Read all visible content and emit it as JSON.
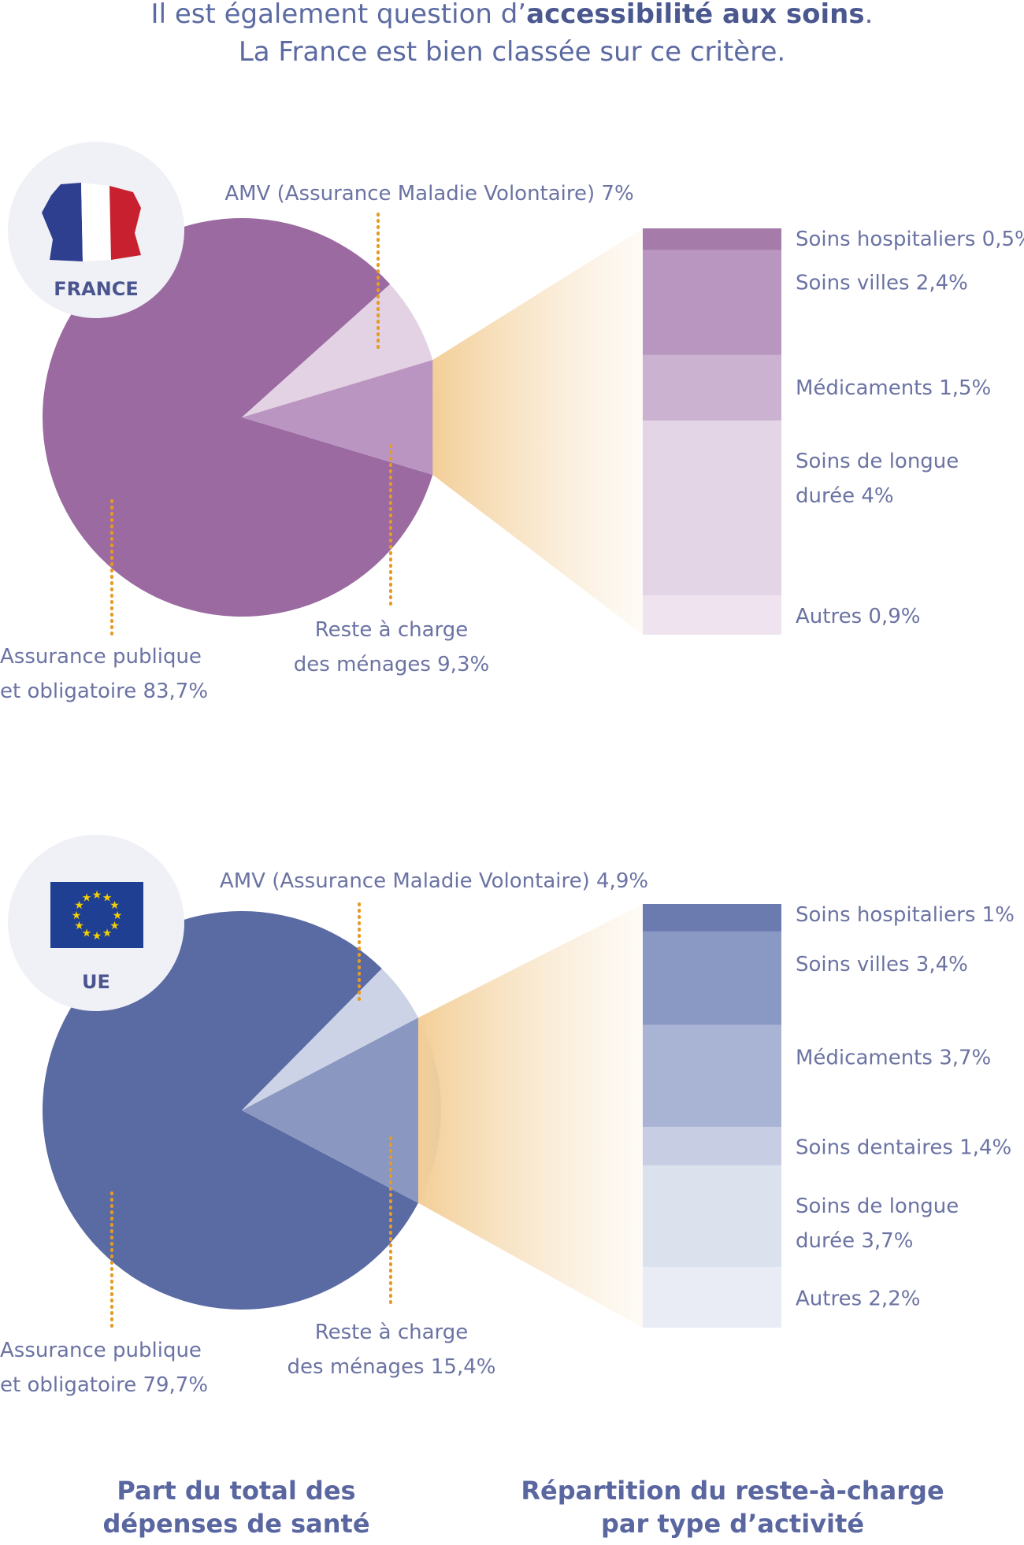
{
  "header": {
    "line1_prefix": "Il est également question d’",
    "line1_bold": "accessibilité aux soins",
    "line1_suffix": ".",
    "line2": "La France est bien classée sur ce critère."
  },
  "footer": {
    "left_title_line1": "Part du total des",
    "left_title_line2": "dépenses de santé",
    "right_title_line1": "Répartition du reste-à-charge",
    "right_title_line2": "par type d’activité"
  },
  "colors": {
    "france_main": "#9a6aa0",
    "france_amv": "#e2d2e4",
    "france_reste": "#bb95c1",
    "eu_main": "#5a6aa3",
    "eu_amv": "#cdd3e7",
    "eu_reste": "#8a98c1",
    "leader": "#e69a24",
    "fan": "#f5d9ae",
    "label_text": "#6b73a3"
  },
  "chart_data": [
    {
      "type": "pie",
      "badge": "FRANCE",
      "flag": "france-map-flag-icon",
      "slices": [
        {
          "label_line1": "Assurance publique",
          "label_line2": "et obligatoire 83,7%",
          "value": 83.7
        },
        {
          "label_line1": "AMV (Assurance Maladie Volontaire) 7%",
          "label_line2": "",
          "value": 7
        },
        {
          "label_line1": "Reste à charge",
          "label_line2": "des ménages 9,3%",
          "value": 9.3
        }
      ],
      "breakdown": {
        "type": "stacked-bar",
        "segments": [
          {
            "label_line1": "Soins hospitaliers 0,5%",
            "label_line2": "",
            "value": 0.5,
            "color": "#a47ba9"
          },
          {
            "label_line1": "Soins villes 2,4%",
            "label_line2": "",
            "value": 2.4,
            "color": "#b896bf"
          },
          {
            "label_line1": "Médicaments 1,5%",
            "label_line2": "",
            "value": 1.5,
            "color": "#ccb2d1"
          },
          {
            "label_line1": "Soins de longue",
            "label_line2": "durée 4%",
            "value": 4,
            "color": "#e3d4e6"
          },
          {
            "label_line1": "Autres 0,9%",
            "label_line2": "",
            "value": 0.9,
            "color": "#eee3ef"
          }
        ]
      }
    },
    {
      "type": "pie",
      "badge": "UE",
      "flag": "eu-flag-icon",
      "slices": [
        {
          "label_line1": "Assurance publique",
          "label_line2": "et obligatoire 79,7%",
          "value": 79.7
        },
        {
          "label_line1": "AMV (Assurance Maladie Volontaire) 4,9%",
          "label_line2": "",
          "value": 4.9
        },
        {
          "label_line1": "Reste à charge",
          "label_line2": "des ménages 15,4%",
          "value": 15.4
        }
      ],
      "breakdown": {
        "type": "stacked-bar",
        "segments": [
          {
            "label_line1": "Soins hospitaliers 1%",
            "label_line2": "",
            "value": 1,
            "color": "#6b7bb0"
          },
          {
            "label_line1": "Soins villes 3,4%",
            "label_line2": "",
            "value": 3.4,
            "color": "#8a98c4"
          },
          {
            "label_line1": "Médicaments 3,7%",
            "label_line2": "",
            "value": 3.7,
            "color": "#a9b3d3"
          },
          {
            "label_line1": "Soins dentaires 1,4%",
            "label_line2": "",
            "value": 1.4,
            "color": "#c7cee4"
          },
          {
            "label_line1": "Soins de longue",
            "label_line2": "durée 3,7%",
            "value": 3.7,
            "color": "#dce1ee"
          },
          {
            "label_line1": "Autres 2,2%",
            "label_line2": "",
            "value": 2.2,
            "color": "#e9ecf4"
          }
        ]
      }
    }
  ]
}
